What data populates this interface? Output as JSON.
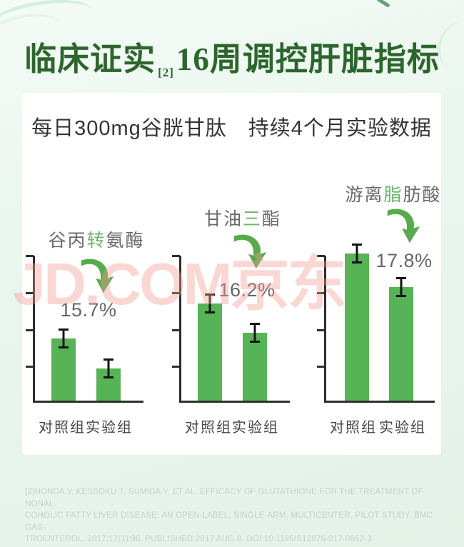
{
  "page_title": {
    "part1": "临床证实",
    "ref": "[2]",
    "part2": "16周调控肝脏指标"
  },
  "subtitle": "每日300mg谷胱甘肽　持续4个月实验数据",
  "watermark": "JD.COM京东",
  "colors": {
    "title_green": "#2d662d",
    "bar_green": "#56b356",
    "arrow_green": "#57ab4a",
    "highlight_green": "#6ab768",
    "watermark_pink": "#f39a92",
    "background_mint": "#e8f5ee"
  },
  "chart_data": {
    "type": "bar",
    "title": "每日300mg谷胱甘肽 持续4个月实验数据",
    "xlabel": "",
    "ylabel": "",
    "axis_numeric_labels": false,
    "error_bars": true,
    "categories": [
      "对照组",
      "实验组"
    ],
    "groups": [
      {
        "indicator": "谷丙转氨酶",
        "label_pre": "谷丙",
        "label_hl": "转",
        "label_post": "氨酶",
        "reduction": "15.7%",
        "reduction_pct": 15.7,
        "values_relative": [
          42,
          22
        ]
      },
      {
        "indicator": "甘油三酯",
        "label_pre": "甘油",
        "label_hl": "三",
        "label_post": "酯",
        "reduction": "16.2%",
        "reduction_pct": 16.2,
        "values_relative": [
          66,
          46
        ]
      },
      {
        "indicator": "游离脂肪酸",
        "label_pre": "游离",
        "label_hl": "脂",
        "label_post": "肪酸",
        "reduction": "17.8%",
        "reduction_pct": 17.8,
        "values_relative": [
          100,
          77
        ]
      }
    ]
  },
  "footnote": {
    "lines": [
      "[2]HONDA Y, KESSOKU T, SUMIDA Y, ET AL. EFFICACY OF GLUTATHIONE FOR THE TREATMENT OF NONAL-",
      "COHOLIC FATTY LIVER DISEASE: AN OPEN-LABEL, SINGLE-ARM, MULTICENTER, PILOT STUDY. BMC GAS-",
      "TROENTEROL. 2017;17(1):96. PUBLISHED 2017 AUG 8. DOI:10.1186/S12876-017-0652-3"
    ]
  }
}
